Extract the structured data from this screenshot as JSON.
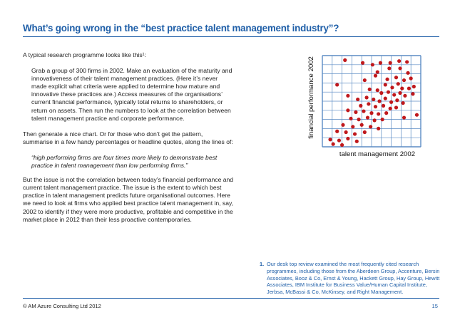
{
  "title": "What’s going wrong in the “best practice talent management industry”?",
  "paragraphs": {
    "intro": "A typical research programme looks like this¹:",
    "programme": "Grab a group of 300 firms in 2002. Make an evaluation of the maturity and innovativeness of their talent management practices. (Here it’s never made explicit what criteria were applied to determine how mature and innovative these practices are.) Access measures of the organisations’ current financial performance, typically total returns to shareholders, or return on assets. Then run the numbers to look at the correlation between talent management practice and corporate performance.",
    "generate": "Then generate a nice chart. Or for those who don’t get the pattern, summarise in a few handy percentages or headline quotes, along the lines of:",
    "quote": "“high performing firms are four times more likely to demonstrate best practice in talent management than low performing firms.”",
    "issue": "But the issue is not the correlation between today’s financial performance and current talent management practice. The issue is the extent to which best practice in talent management predicts future organisational outcomes. Here we need to look at firms who applied best practice talent management in, say, 2002 to identify if they were more productive, profitable and competitive in the market place in 2012 than their less proactive contemporaries."
  },
  "footnote": {
    "number": "1.",
    "text": "Our desk top review examined the most frequently cited research programmes, including those from the Aberdeen Group, Accenture, Bersin Associates, Booz & Co, Ernst & Young, Hackett Group, Hay Group, Hewitt Associates, IBM Institute for Business Value/Human Capital Institute, Jerbsa, McBassi & Co, McKinsey, and Right Management."
  },
  "footer": {
    "copyright": "© AM Azure Consulting Ltd 2012",
    "page_number": "15"
  },
  "colors": {
    "accent": "#1f5fa8",
    "grid": "#5b8bc4",
    "point": "#c0181c"
  },
  "chart_data": {
    "type": "scatter",
    "xlabel": "talent management 2002",
    "ylabel": "financial performance 2002",
    "xlim": [
      0,
      10
    ],
    "ylim": [
      0,
      10
    ],
    "grid": true,
    "points": [
      [
        2.3,
        9.5
      ],
      [
        4.1,
        9.2
      ],
      [
        5.1,
        9.0
      ],
      [
        5.9,
        9.2
      ],
      [
        6.9,
        9.2
      ],
      [
        7.8,
        9.4
      ],
      [
        8.6,
        9.3
      ],
      [
        5.6,
        8.2
      ],
      [
        6.8,
        8.6
      ],
      [
        7.9,
        8.6
      ],
      [
        8.7,
        8.1
      ],
      [
        4.3,
        7.3
      ],
      [
        5.4,
        7.8
      ],
      [
        6.6,
        7.4
      ],
      [
        7.5,
        7.6
      ],
      [
        8.3,
        7.3
      ],
      [
        9.0,
        7.5
      ],
      [
        6.4,
        6.8
      ],
      [
        7.1,
        6.5
      ],
      [
        7.7,
        6.9
      ],
      [
        8.1,
        6.4
      ],
      [
        8.8,
        6.4
      ],
      [
        9.3,
        6.6
      ],
      [
        4.8,
        6.3
      ],
      [
        5.6,
        6.2
      ],
      [
        6.0,
        5.9
      ],
      [
        6.7,
        6.0
      ],
      [
        7.3,
        5.7
      ],
      [
        7.9,
        5.9
      ],
      [
        8.4,
        5.6
      ],
      [
        9.2,
        5.8
      ],
      [
        1.5,
        6.8
      ],
      [
        2.6,
        5.6
      ],
      [
        3.6,
        5.2
      ],
      [
        4.5,
        5.4
      ],
      [
        5.2,
        5.2
      ],
      [
        5.8,
        5.0
      ],
      [
        6.4,
        5.3
      ],
      [
        7.0,
        4.9
      ],
      [
        7.6,
        5.1
      ],
      [
        8.2,
        4.8
      ],
      [
        3.9,
        4.5
      ],
      [
        4.7,
        4.7
      ],
      [
        5.4,
        4.4
      ],
      [
        6.2,
        4.5
      ],
      [
        6.9,
        4.2
      ],
      [
        7.5,
        4.3
      ],
      [
        2.6,
        4.0
      ],
      [
        3.4,
        3.8
      ],
      [
        4.2,
        3.9
      ],
      [
        5.0,
        3.7
      ],
      [
        5.7,
        3.6
      ],
      [
        6.5,
        3.7
      ],
      [
        2.9,
        3.1
      ],
      [
        3.7,
        3.0
      ],
      [
        4.6,
        3.2
      ],
      [
        5.3,
        2.9
      ],
      [
        6.1,
        3.0
      ],
      [
        8.3,
        3.2
      ],
      [
        9.6,
        3.5
      ],
      [
        2.1,
        2.4
      ],
      [
        3.1,
        2.2
      ],
      [
        4.0,
        2.4
      ],
      [
        4.9,
        2.2
      ],
      [
        5.7,
        2.0
      ],
      [
        1.5,
        1.7
      ],
      [
        2.4,
        1.6
      ],
      [
        3.3,
        1.4
      ],
      [
        4.3,
        1.6
      ],
      [
        0.8,
        0.8
      ],
      [
        1.7,
        0.7
      ],
      [
        2.6,
        0.9
      ],
      [
        3.5,
        0.6
      ],
      [
        1.1,
        0.3
      ],
      [
        2.0,
        0.2
      ]
    ]
  }
}
